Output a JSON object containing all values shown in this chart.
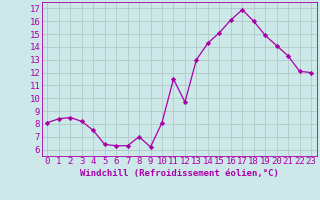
{
  "x": [
    0,
    1,
    2,
    3,
    4,
    5,
    6,
    7,
    8,
    9,
    10,
    11,
    12,
    13,
    14,
    15,
    16,
    17,
    18,
    19,
    20,
    21,
    22,
    23
  ],
  "y": [
    8.1,
    8.4,
    8.5,
    8.2,
    7.5,
    6.4,
    6.3,
    6.3,
    7.0,
    6.2,
    8.1,
    11.5,
    9.7,
    13.0,
    14.3,
    15.1,
    16.1,
    16.9,
    16.0,
    14.9,
    14.1,
    13.3,
    12.1,
    12.0
  ],
  "line_color": "#aa00aa",
  "marker": "D",
  "markersize": 2.2,
  "linewidth": 0.9,
  "xlabel": "Windchill (Refroidissement éolien,°C)",
  "yticks": [
    6,
    7,
    8,
    9,
    10,
    11,
    12,
    13,
    14,
    15,
    16,
    17
  ],
  "xlim": [
    -0.5,
    23.5
  ],
  "ylim": [
    5.5,
    17.5
  ],
  "bg_color": "#cce8e8",
  "grid_color": "#b0c8c8",
  "xlabel_fontsize": 6.5,
  "tick_fontsize": 6.5
}
